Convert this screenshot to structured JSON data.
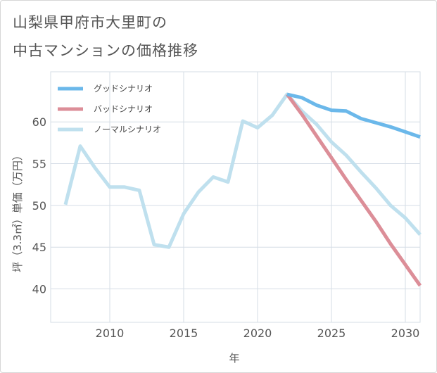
{
  "title_line1": "山梨県甲府市大里町の",
  "title_line2": "中古マンションの価格推移",
  "chart_data": {
    "type": "line",
    "title": "山梨県甲府市大里町の中古マンションの価格推移",
    "xlabel": "年",
    "ylabel": "坪（3.3㎡）単価（万円）",
    "xlim": [
      2006,
      2031
    ],
    "ylim": [
      36,
      66
    ],
    "xticks": [
      2010,
      2015,
      2020,
      2025,
      2030
    ],
    "yticks": [
      40,
      45,
      50,
      55,
      60
    ],
    "grid": true,
    "legend_position": "top-left",
    "series": [
      {
        "name": "グッドシナリオ",
        "color": "#6bb8ea",
        "x": [
          2022,
          2023,
          2024,
          2025,
          2026,
          2027,
          2028,
          2029,
          2030,
          2031
        ],
        "y": [
          63.3,
          62.9,
          62.0,
          61.4,
          61.3,
          60.4,
          59.9,
          59.4,
          58.8,
          58.2
        ]
      },
      {
        "name": "バッドシナリオ",
        "color": "#dc8e98",
        "x": [
          2022,
          2023,
          2024,
          2025,
          2026,
          2027,
          2028,
          2029,
          2030,
          2031
        ],
        "y": [
          63.3,
          60.9,
          58.3,
          55.7,
          53.1,
          50.6,
          48.1,
          45.4,
          42.9,
          40.4
        ]
      },
      {
        "name": "ノーマルシナリオ",
        "color": "#bfe0ee",
        "x": [
          2007,
          2008,
          2009,
          2010,
          2011,
          2012,
          2013,
          2014,
          2015,
          2016,
          2017,
          2018,
          2019,
          2020,
          2021,
          2022,
          2023,
          2024,
          2025,
          2026,
          2027,
          2028,
          2029,
          2030,
          2031
        ],
        "y": [
          50.1,
          57.1,
          54.5,
          52.2,
          52.2,
          51.8,
          45.3,
          45.0,
          49.0,
          51.6,
          53.4,
          52.8,
          60.1,
          59.3,
          60.8,
          63.3,
          61.3,
          59.7,
          57.6,
          56.0,
          54.0,
          52.1,
          50.0,
          48.5,
          46.5
        ]
      }
    ]
  }
}
